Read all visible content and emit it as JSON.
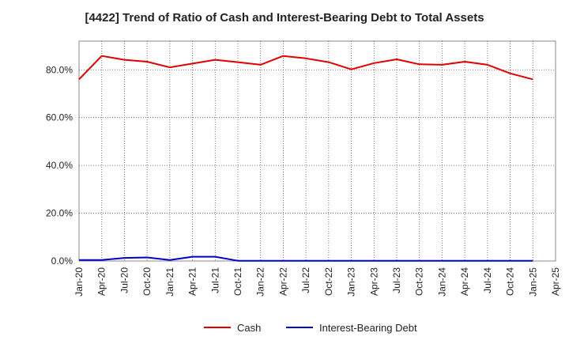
{
  "chart_data": {
    "type": "line",
    "title": "[4422]  Trend of Ratio of Cash and Interest-Bearing Debt to Total Assets",
    "xlabel": "",
    "ylabel": "",
    "y_axis_format": "percent, one decimal",
    "ylim": [
      0,
      92
    ],
    "y_ticks": [
      0,
      20,
      40,
      60,
      80
    ],
    "y_tick_labels": [
      "0.0%",
      "20.0%",
      "40.0%",
      "60.0%",
      "80.0%"
    ],
    "x_tick_labels": [
      "Jan-20",
      "Apr-20",
      "Jul-20",
      "Oct-20",
      "Jan-21",
      "Apr-21",
      "Jul-21",
      "Oct-21",
      "Jan-22",
      "Apr-22",
      "Jul-22",
      "Oct-22",
      "Jan-23",
      "Apr-23",
      "Jul-23",
      "Oct-23",
      "Jan-24",
      "Apr-24",
      "Jul-24",
      "Oct-24",
      "Jan-25",
      "Apr-25"
    ],
    "x": [
      "Jan-20",
      "Apr-20",
      "Jul-20",
      "Oct-20",
      "Jan-21",
      "Apr-21",
      "Jul-21",
      "Oct-21",
      "Jan-22",
      "Apr-22",
      "Jul-22",
      "Oct-22",
      "Jan-23",
      "Apr-23",
      "Jul-23",
      "Oct-23",
      "Jan-24",
      "Apr-24",
      "Jul-24",
      "Oct-24",
      "Jan-25"
    ],
    "grid": true,
    "legend_position": "bottom-center",
    "series": [
      {
        "name": "Cash",
        "color": "#e00000",
        "values": [
          76.0,
          85.8,
          84.2,
          83.4,
          81.0,
          82.6,
          84.2,
          83.2,
          82.1,
          85.8,
          84.8,
          83.2,
          80.2,
          82.8,
          84.4,
          82.3,
          82.1,
          83.4,
          82.1,
          78.5,
          76.0
        ]
      },
      {
        "name": "Interest-Bearing Debt",
        "color": "#0000cc",
        "values": [
          0.4,
          0.4,
          1.3,
          1.5,
          0.4,
          1.8,
          1.8,
          0.1,
          0.1,
          0.1,
          0.1,
          0.1,
          0.1,
          0.1,
          0.1,
          0.1,
          0.1,
          0.1,
          0.1,
          0.1,
          0.1
        ]
      }
    ]
  }
}
